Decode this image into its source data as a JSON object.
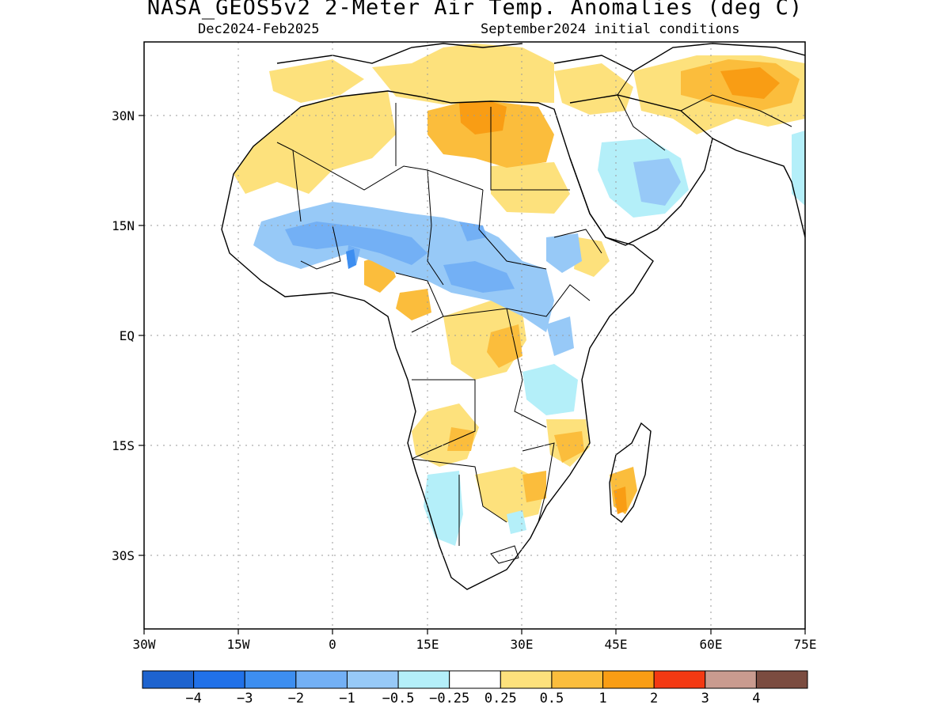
{
  "title": "NASA_GEOS5v2 2-Meter Air Temp. Anomalies (deg C)",
  "subtitle_left": "Dec2024-Feb2025",
  "subtitle_right": "September2024 initial conditions",
  "map": {
    "region": "Africa",
    "lon_range": [
      -30,
      75
    ],
    "lat_range": [
      -40,
      40
    ],
    "lon_ticks": [
      "30W",
      "15W",
      "0",
      "15E",
      "30E",
      "45E",
      "60E",
      "75E"
    ],
    "lat_ticks": [
      "30N",
      "15N",
      "EQ",
      "15S",
      "30S"
    ],
    "grid": "dotted"
  },
  "colorbar": {
    "colors": [
      "#1d63cf",
      "#2171e8",
      "#3d8ef0",
      "#73b0f5",
      "#97c9f7",
      "#b4eff9",
      "#ffffff",
      "#fde17c",
      "#fbbd3c",
      "#f99d14",
      "#f33913",
      "#c99b8f",
      "#7b4c40"
    ],
    "labels": [
      "-4",
      "-3",
      "-2",
      "-1",
      "-0.5",
      "-0.25",
      "0.25",
      "0.5",
      "1",
      "2",
      "3",
      "4"
    ]
  }
}
